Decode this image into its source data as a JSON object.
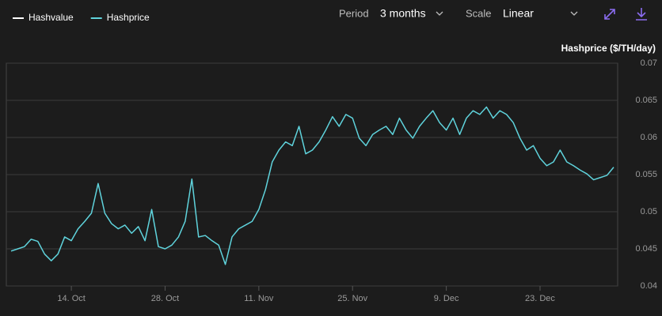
{
  "toolbar": {
    "period_label": "Period",
    "period_value": "3 months",
    "scale_label": "Scale",
    "scale_value": "Linear"
  },
  "chart_data": {
    "type": "line",
    "y_label": "Hashprice ($/TH/day)",
    "x": [
      "5. Oct",
      "6. Oct",
      "7. Oct",
      "8. Oct",
      "9. Oct",
      "10. Oct",
      "11. Oct",
      "12. Oct",
      "13. Oct",
      "14. Oct",
      "15. Oct",
      "16. Oct",
      "17. Oct",
      "18. Oct",
      "19. Oct",
      "20. Oct",
      "21. Oct",
      "22. Oct",
      "23. Oct",
      "24. Oct",
      "25. Oct",
      "26. Oct",
      "27. Oct",
      "28. Oct",
      "29. Oct",
      "30. Oct",
      "31. Oct",
      "1. Nov",
      "2. Nov",
      "3. Nov",
      "4. Nov",
      "5. Nov",
      "6. Nov",
      "7. Nov",
      "8. Nov",
      "9. Nov",
      "10. Nov",
      "11. Nov",
      "12. Nov",
      "13. Nov",
      "14. Nov",
      "15. Nov",
      "16. Nov",
      "17. Nov",
      "18. Nov",
      "19. Nov",
      "20. Nov",
      "21. Nov",
      "22. Nov",
      "23. Nov",
      "24. Nov",
      "25. Nov",
      "26. Nov",
      "27. Nov",
      "28. Nov",
      "29. Nov",
      "30. Nov",
      "1. Dec",
      "2. Dec",
      "3. Dec",
      "4. Dec",
      "5. Dec",
      "6. Dec",
      "7. Dec",
      "8. Dec",
      "9. Dec",
      "10. Dec",
      "11. Dec",
      "12. Dec",
      "13. Dec",
      "14. Dec",
      "15. Dec",
      "16. Dec",
      "17. Dec",
      "18. Dec",
      "19. Dec",
      "20. Dec",
      "21. Dec",
      "22. Dec",
      "23. Dec",
      "24. Dec",
      "25. Dec",
      "26. Dec",
      "27. Dec",
      "28. Dec",
      "29. Dec",
      "30. Dec",
      "31. Dec",
      "1. Jan",
      "2. Jan",
      "3. Jan"
    ],
    "xticks": [
      "14. Oct",
      "28. Oct",
      "11. Nov",
      "25. Nov",
      "9. Dec",
      "23. Dec"
    ],
    "series": [
      {
        "name": "Hashvalue",
        "color": "#ffffff",
        "values": [
          null,
          null,
          null,
          null,
          null,
          null,
          null,
          null,
          null,
          null,
          null,
          null,
          null,
          null,
          null,
          null,
          null,
          null,
          null,
          null,
          null,
          null,
          null,
          null,
          null,
          null,
          null,
          null,
          null,
          null,
          null,
          null,
          null,
          null,
          null,
          null,
          null,
          null,
          null,
          null,
          null,
          null,
          null,
          null,
          null,
          null,
          null,
          null,
          null,
          null,
          null,
          null,
          null,
          null,
          null,
          null,
          null,
          null,
          null,
          null,
          null,
          null,
          null,
          null,
          null,
          null,
          null,
          null,
          null,
          null,
          null,
          null,
          null,
          null,
          null,
          null,
          null,
          null,
          null,
          null,
          null,
          null,
          null,
          null,
          null,
          null,
          null,
          null,
          null,
          null,
          null
        ]
      },
      {
        "name": "Hashprice",
        "color": "#5fd3dc",
        "values": [
          0.0447,
          0.045,
          0.0453,
          0.0463,
          0.046,
          0.0443,
          0.0434,
          0.0443,
          0.0466,
          0.0461,
          0.0477,
          0.0487,
          0.0498,
          0.0538,
          0.0498,
          0.0484,
          0.0477,
          0.0482,
          0.0471,
          0.048,
          0.0461,
          0.0503,
          0.0453,
          0.045,
          0.0455,
          0.0466,
          0.0487,
          0.0544,
          0.0466,
          0.0468,
          0.0461,
          0.0455,
          0.0429,
          0.0466,
          0.0477,
          0.0482,
          0.0487,
          0.0503,
          0.053,
          0.0567,
          0.0583,
          0.0594,
          0.0589,
          0.0615,
          0.0578,
          0.0583,
          0.0594,
          0.061,
          0.0628,
          0.0615,
          0.0631,
          0.0626,
          0.0599,
          0.0589,
          0.0604,
          0.061,
          0.0615,
          0.0604,
          0.0626,
          0.061,
          0.0599,
          0.0615,
          0.0626,
          0.0636,
          0.062,
          0.061,
          0.0626,
          0.0604,
          0.0626,
          0.0636,
          0.0631,
          0.0641,
          0.0626,
          0.0636,
          0.0631,
          0.062,
          0.0599,
          0.0583,
          0.0589,
          0.0572,
          0.0562,
          0.0567,
          0.0583,
          0.0567,
          0.0562,
          0.0556,
          0.0551,
          0.0543,
          0.0546,
          0.0549,
          0.056
        ]
      }
    ],
    "ylim": [
      0.04,
      0.07
    ],
    "yticks": [
      0.04,
      0.045,
      0.05,
      0.055,
      0.06,
      0.065,
      0.07
    ],
    "grid": true
  }
}
